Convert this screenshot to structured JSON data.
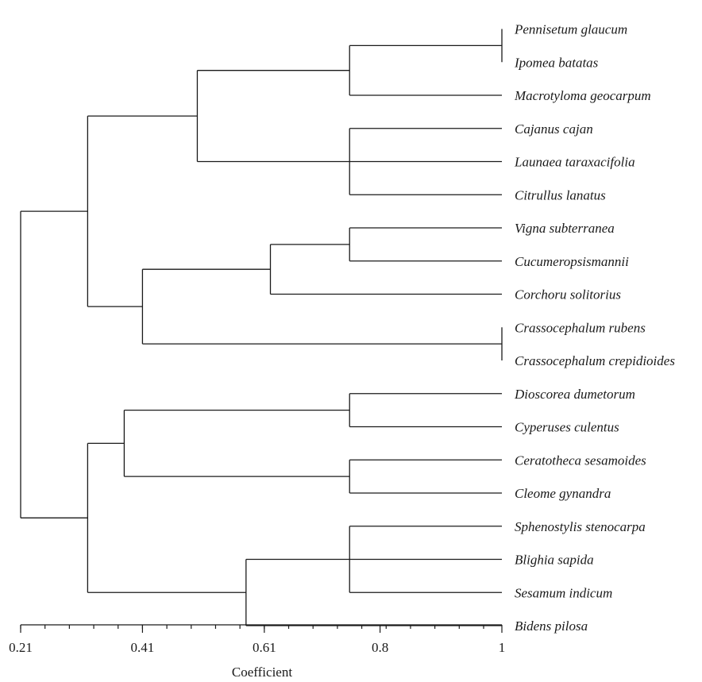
{
  "chart_data": {
    "type": "dendrogram",
    "xlabel": "Coefficient",
    "xlim": [
      0.21,
      1
    ],
    "x_ticks": [
      {
        "value": 0.21,
        "label": "0.21"
      },
      {
        "value": 0.41,
        "label": "0.41"
      },
      {
        "value": 0.61,
        "label": "0.61"
      },
      {
        "value": 0.8,
        "label": "0.8"
      },
      {
        "value": 1.0,
        "label": "1"
      }
    ],
    "minor_tick_step": 0.04,
    "leaves": [
      "Pennisetum glaucum",
      "Ipomea batatas",
      "Macrotyloma geocarpum",
      "Cajanus cajan",
      "Launaea taraxacifolia",
      "Citrullus lanatus",
      "Vigna subterranea",
      "Cucumeropsismannii",
      "Corchoru solitorius",
      "Crassocephalum rubens",
      "Crassocephalum crepidioides",
      "Dioscorea dumetorum",
      "Cyperuses culentus",
      "Ceratotheca sesamoides",
      "Cleome gynandra",
      "Sphenostylis stenocarpa",
      "Blighia sapida",
      "Sesamum indicum",
      "Bidens pilosa"
    ],
    "merges": [
      {
        "id": "m0",
        "height": 1.0,
        "children": [
          "L0",
          "L1"
        ]
      },
      {
        "id": "m1",
        "height": 0.75,
        "children": [
          "m0",
          "L2"
        ]
      },
      {
        "id": "m2",
        "height": 0.75,
        "children": [
          "L3",
          "L4",
          "L5"
        ]
      },
      {
        "id": "m3",
        "height": 0.5,
        "children": [
          "m1",
          "m2"
        ]
      },
      {
        "id": "m4",
        "height": 0.75,
        "children": [
          "L6",
          "L7"
        ]
      },
      {
        "id": "m5",
        "height": 0.62,
        "children": [
          "m4",
          "L8"
        ]
      },
      {
        "id": "m6",
        "height": 1.0,
        "children": [
          "L9",
          "L10"
        ]
      },
      {
        "id": "m7",
        "height": 0.41,
        "children": [
          "m5",
          "m6"
        ]
      },
      {
        "id": "m8",
        "height": 0.32,
        "children": [
          "m3",
          "m7"
        ]
      },
      {
        "id": "m9",
        "height": 0.75,
        "children": [
          "L11",
          "L12"
        ]
      },
      {
        "id": "m10",
        "height": 0.75,
        "children": [
          "L13",
          "L14"
        ]
      },
      {
        "id": "m11",
        "height": 0.38,
        "children": [
          "m9",
          "m10"
        ]
      },
      {
        "id": "m12",
        "height": 0.75,
        "children": [
          "L15",
          "L16",
          "L17"
        ]
      },
      {
        "id": "m13",
        "height": 0.58,
        "children": [
          "m12",
          "L18"
        ]
      },
      {
        "id": "m14",
        "height": 0.32,
        "children": [
          "m11",
          "m13"
        ]
      },
      {
        "id": "m15",
        "height": 0.21,
        "children": [
          "m8",
          "m14"
        ]
      }
    ]
  }
}
